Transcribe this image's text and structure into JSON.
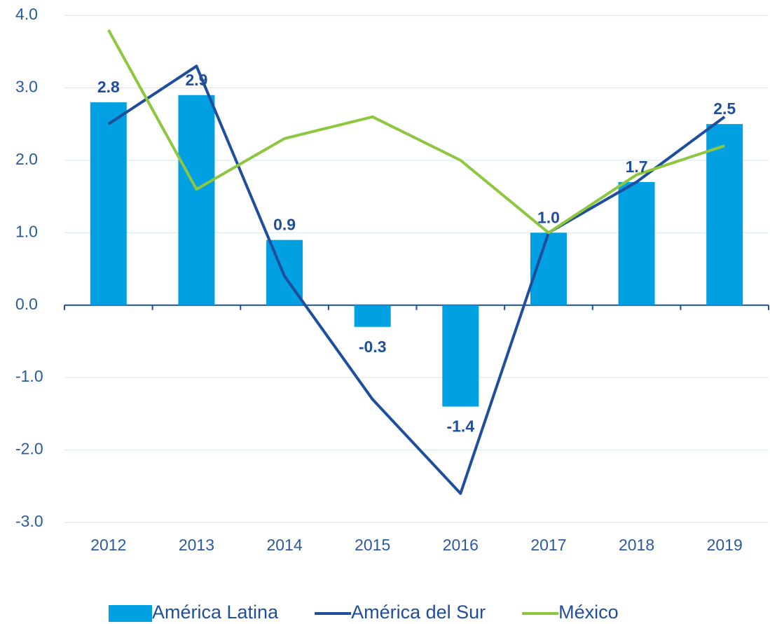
{
  "chart_data": {
    "type": "bar",
    "categories": [
      "2012",
      "2013",
      "2014",
      "2015",
      "2016",
      "2017",
      "2018",
      "2019"
    ],
    "series": [
      {
        "name": "América Latina",
        "type": "bar",
        "color": "#00a0e2",
        "values": [
          2.8,
          2.9,
          0.9,
          -0.3,
          -1.4,
          1.0,
          1.7,
          2.5
        ],
        "value_labels": [
          "2.8",
          "2.9",
          "0.9",
          "-0.3",
          "-1.4",
          "1.0",
          "1.7",
          "2.5"
        ]
      },
      {
        "name": "América del Sur",
        "type": "line",
        "color": "#1f4e9c",
        "values": [
          2.5,
          3.3,
          0.4,
          -1.3,
          -2.6,
          1.0,
          1.7,
          2.6
        ]
      },
      {
        "name": "México",
        "type": "line",
        "color": "#8dc63f",
        "values": [
          3.8,
          1.6,
          2.3,
          2.6,
          2.0,
          1.0,
          1.8,
          2.2
        ]
      }
    ],
    "ylim": [
      -3,
      4
    ],
    "yticks": [
      {
        "value": 4,
        "label": "4.0"
      },
      {
        "value": 3,
        "label": "3.0"
      },
      {
        "value": 2,
        "label": "2.0"
      },
      {
        "value": 1,
        "label": "1.0"
      },
      {
        "value": 0,
        "label": "0.0"
      },
      {
        "value": -1,
        "label": "-1.0"
      },
      {
        "value": -2,
        "label": "-2.0"
      },
      {
        "value": -3,
        "label": "-3.0"
      }
    ],
    "grid": true,
    "legend": "bottom"
  }
}
